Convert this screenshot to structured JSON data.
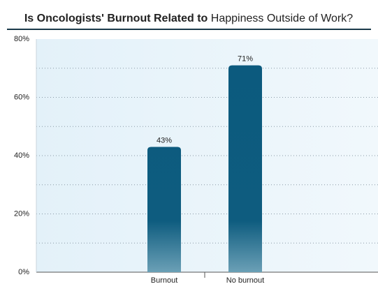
{
  "chart_data": {
    "type": "bar",
    "title": {
      "bold": "Is Oncologists' Burnout Related to",
      "regular": "Happiness Outside of Work?"
    },
    "categories": [
      "Burnout",
      "No burnout"
    ],
    "values": [
      43,
      71
    ],
    "value_labels": [
      "43%",
      "71%"
    ],
    "color": "#0b5a7e",
    "ylim": [
      0,
      80
    ],
    "yticks": [
      {
        "value": 0,
        "label": "0%"
      },
      {
        "value": 20,
        "label": "20%"
      },
      {
        "value": 40,
        "label": "40%"
      },
      {
        "value": 60,
        "label": "60%"
      },
      {
        "value": 80,
        "label": "80%"
      }
    ],
    "minor_yticks": [
      10,
      30,
      50,
      70
    ],
    "grid": true
  }
}
